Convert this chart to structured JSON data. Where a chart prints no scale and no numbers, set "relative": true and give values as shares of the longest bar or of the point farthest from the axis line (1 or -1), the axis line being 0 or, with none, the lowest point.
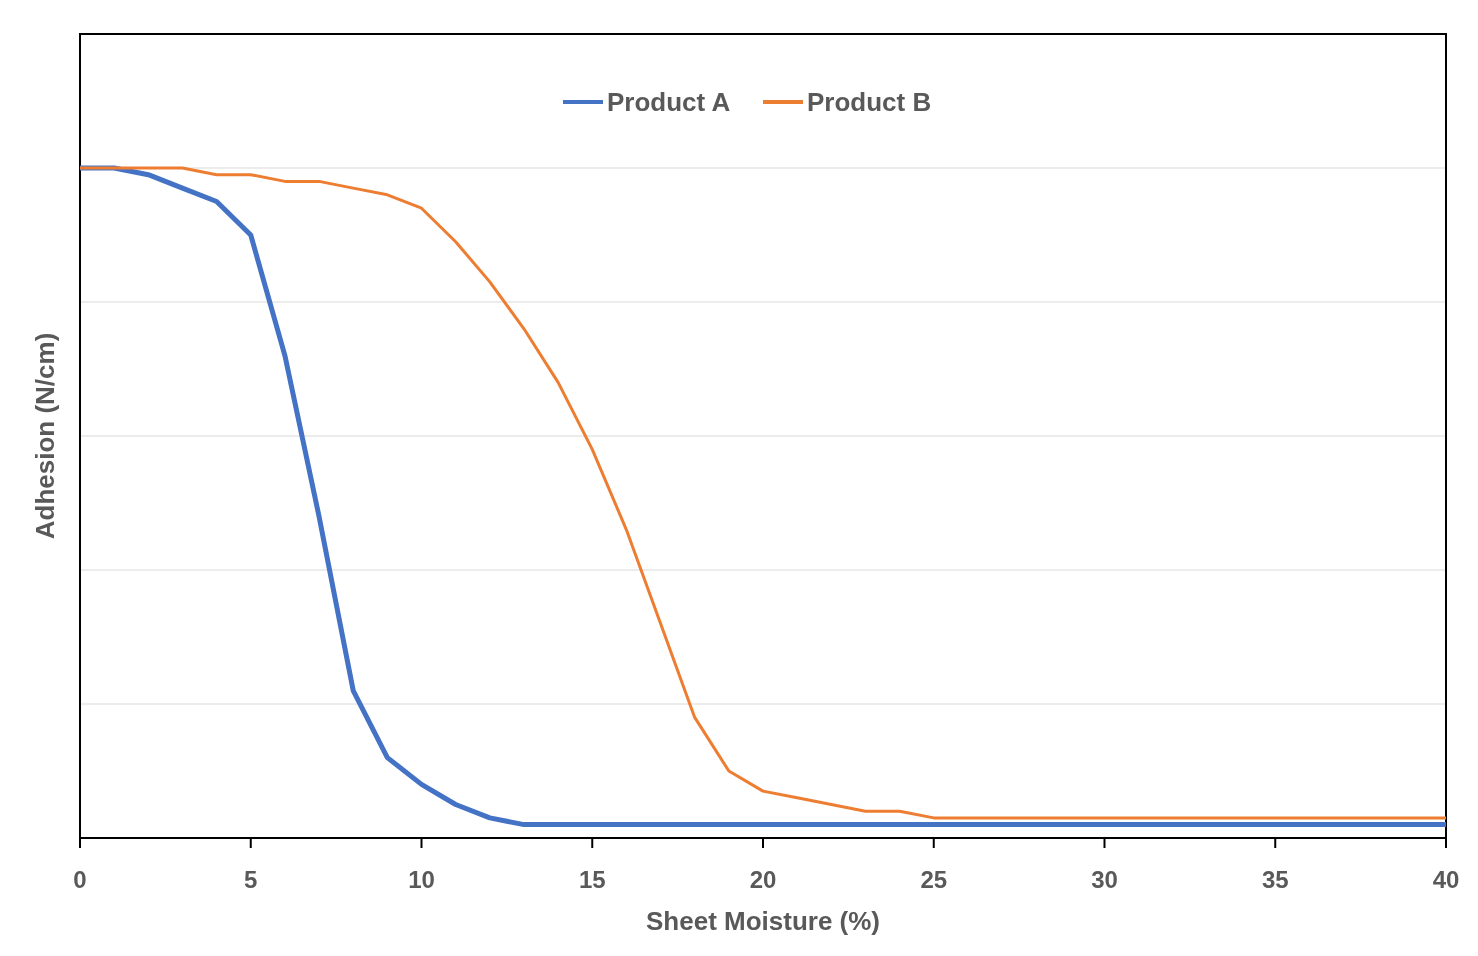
{
  "chart_data": {
    "type": "line",
    "relative": true,
    "xlabel": "Sheet Moisture (%)",
    "ylabel": "Adhesion (N/cm)",
    "xlim": [
      0,
      40
    ],
    "xticks": [
      0,
      5,
      10,
      15,
      20,
      25,
      30,
      35,
      40
    ],
    "grid": "y",
    "legend": "top",
    "line_style": "solid",
    "marker": "none",
    "series": [
      {
        "name": "Product A",
        "color": "#4472c4",
        "x": [
          0,
          1,
          2,
          3,
          4,
          5,
          6,
          7,
          8,
          9,
          10,
          11,
          12,
          13,
          40
        ],
        "values": [
          1,
          1,
          0.99,
          0.97,
          0.95,
          0.9,
          0.72,
          0.48,
          0.22,
          0.12,
          0.08,
          0.05,
          0.03,
          0.02,
          0.02
        ]
      },
      {
        "name": "Product B",
        "color": "#ed7d31",
        "x": [
          0,
          1,
          2,
          3,
          4,
          5,
          6,
          7,
          8,
          9,
          10,
          11,
          12,
          13,
          14,
          15,
          16,
          17,
          18,
          19,
          20,
          21,
          22,
          23,
          24,
          25,
          40
        ],
        "values": [
          1,
          1,
          1,
          1,
          0.99,
          0.99,
          0.98,
          0.98,
          0.97,
          0.96,
          0.94,
          0.89,
          0.83,
          0.76,
          0.68,
          0.58,
          0.46,
          0.32,
          0.18,
          0.1,
          0.07,
          0.06,
          0.05,
          0.04,
          0.04,
          0.03,
          0.03
        ]
      }
    ]
  }
}
